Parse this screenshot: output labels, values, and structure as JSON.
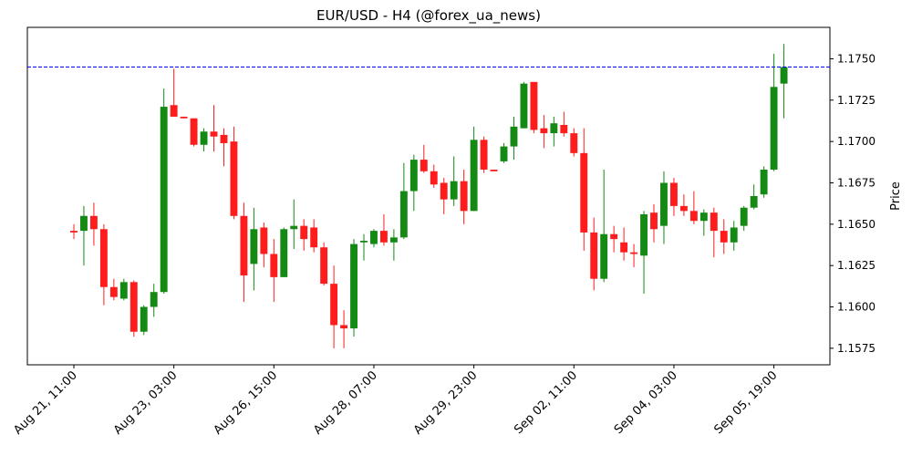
{
  "chart_data": {
    "type": "candlestick",
    "title": "EUR/USD - H4 (@forex_ua_news)",
    "ylabel": "Price",
    "categories": [
      "Aug 21, 11:00",
      null,
      null,
      null,
      null,
      null,
      null,
      null,
      null,
      null,
      "Aug 23, 03:00",
      null,
      null,
      null,
      null,
      null,
      null,
      null,
      null,
      null,
      "Aug 26, 15:00",
      null,
      null,
      null,
      null,
      null,
      null,
      null,
      null,
      null,
      "Aug 28, 07:00",
      null,
      null,
      null,
      null,
      null,
      null,
      null,
      null,
      null,
      "Aug 29, 23:00",
      null,
      null,
      null,
      null,
      null,
      null,
      null,
      null,
      null,
      "Sep 02, 11:00",
      null,
      null,
      null,
      null,
      null,
      null,
      null,
      null,
      null,
      "Sep 04, 03:00",
      null,
      null,
      null,
      null,
      null,
      null,
      null,
      null,
      null,
      "Sep 05, 19:00",
      null
    ],
    "open": [
      1.1646,
      1.1646,
      1.1655,
      1.1647,
      1.1612,
      1.1605,
      1.1615,
      1.1585,
      1.16,
      1.1609,
      1.1722,
      1.1715,
      1.1714,
      1.1698,
      1.1706,
      1.1704,
      1.17,
      1.1655,
      1.1626,
      1.1648,
      1.1632,
      1.1618,
      1.1647,
      1.1649,
      1.1648,
      1.1636,
      1.1614,
      1.1589,
      1.1587,
      1.1639,
      1.1638,
      1.1646,
      1.1639,
      1.1642,
      1.167,
      1.1689,
      1.1682,
      1.1675,
      1.1665,
      1.1676,
      1.1658,
      1.1701,
      1.1683,
      1.1688,
      1.1697,
      1.1708,
      1.1736,
      1.1708,
      1.1705,
      1.171,
      1.1705,
      1.1693,
      1.1645,
      1.1617,
      1.1644,
      1.1639,
      1.1633,
      1.1631,
      1.1657,
      1.1649,
      1.1675,
      1.1661,
      1.1658,
      1.1652,
      1.1657,
      1.1646,
      1.1639,
      1.1649,
      1.166,
      1.1668,
      1.1683,
      1.1735
    ],
    "high": [
      1.165,
      1.1661,
      1.1663,
      1.165,
      1.1617,
      1.1617,
      1.1616,
      1.1601,
      1.1614,
      1.1732,
      1.1744,
      1.1715,
      1.1714,
      1.1708,
      1.1722,
      1.1708,
      1.1709,
      1.1663,
      1.166,
      1.1651,
      1.1641,
      1.1648,
      1.1665,
      1.1653,
      1.1653,
      1.1639,
      1.1625,
      1.1598,
      1.1641,
      1.1644,
      1.1647,
      1.1656,
      1.1647,
      1.1687,
      1.1692,
      1.1698,
      1.1686,
      1.1678,
      1.1691,
      1.1683,
      1.1709,
      1.1703,
      1.1683,
      1.1699,
      1.1715,
      1.1736,
      1.1736,
      1.1716,
      1.1715,
      1.1718,
      1.1708,
      1.1708,
      1.1654,
      1.1683,
      1.1649,
      1.1648,
      1.1638,
      1.1658,
      1.1662,
      1.1682,
      1.1678,
      1.1668,
      1.167,
      1.1659,
      1.166,
      1.1653,
      1.1652,
      1.1661,
      1.1674,
      1.1685,
      1.1753,
      1.1759
    ],
    "low": [
      1.1641,
      1.1625,
      1.1637,
      1.1601,
      1.1604,
      1.1604,
      1.1582,
      1.1583,
      1.1594,
      1.1608,
      1.1715,
      1.1714,
      1.1697,
      1.1694,
      1.1694,
      1.1685,
      1.1653,
      1.1603,
      1.161,
      1.1624,
      1.1603,
      1.1618,
      1.1635,
      1.1634,
      1.1633,
      1.1613,
      1.1575,
      1.1575,
      1.1582,
      1.1628,
      1.1636,
      1.1637,
      1.1628,
      1.1641,
      1.1658,
      1.1681,
      1.1672,
      1.1656,
      1.1661,
      1.165,
      1.1658,
      1.1681,
      1.1682,
      1.1687,
      1.1689,
      1.1708,
      1.1705,
      1.1696,
      1.1697,
      1.1703,
      1.1691,
      1.1634,
      1.161,
      1.1615,
      1.1633,
      1.1628,
      1.1624,
      1.1608,
      1.1639,
      1.1638,
      1.1655,
      1.1655,
      1.165,
      1.1643,
      1.163,
      1.1632,
      1.1634,
      1.1646,
      1.1659,
      1.1666,
      1.1682,
      1.1714
    ],
    "close": [
      1.1645,
      1.1655,
      1.1647,
      1.1612,
      1.1606,
      1.1615,
      1.1585,
      1.16,
      1.1609,
      1.1721,
      1.1715,
      1.1714,
      1.1698,
      1.1706,
      1.1703,
      1.1699,
      1.1655,
      1.1619,
      1.1647,
      1.1632,
      1.1618,
      1.1647,
      1.1649,
      1.1641,
      1.1636,
      1.1614,
      1.1589,
      1.1587,
      1.1638,
      1.164,
      1.1646,
      1.1639,
      1.1642,
      1.167,
      1.1689,
      1.1682,
      1.1674,
      1.1665,
      1.1676,
      1.1658,
      1.1701,
      1.1683,
      1.1682,
      1.1697,
      1.1709,
      1.1735,
      1.1707,
      1.1705,
      1.1711,
      1.1705,
      1.1693,
      1.1645,
      1.1617,
      1.1644,
      1.1641,
      1.1633,
      1.1632,
      1.1656,
      1.1647,
      1.1675,
      1.1661,
      1.1658,
      1.1652,
      1.1657,
      1.1646,
      1.1639,
      1.1648,
      1.166,
      1.1667,
      1.1683,
      1.1733,
      1.1745
    ],
    "up_color": "#148a14",
    "down_color": "#ff1c1c",
    "hline": 1.1745,
    "hline_color": "#0000ff",
    "xlim": [
      -4.65,
      75.6
    ],
    "ylim": [
      1.1565,
      1.1769
    ],
    "yticks": [
      1.1575,
      {
        "value": 1.16,
        "label": "1.1600"
      },
      1.1625,
      {
        "value": 1.165,
        "label": "1.1650"
      },
      1.1675,
      {
        "value": 1.17,
        "label": "1.1700"
      },
      1.1725,
      {
        "value": 1.175,
        "label": "1.1750"
      }
    ]
  }
}
